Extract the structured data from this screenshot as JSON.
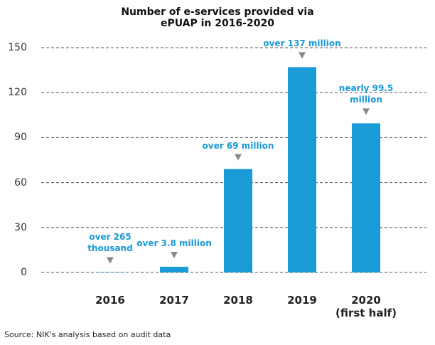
{
  "chart_data": {
    "type": "bar",
    "title": "Number of e-services provided via ePUAP in 2016-2020",
    "categories": [
      "2016",
      "2017",
      "2018",
      "2019",
      "2020\n(first half)"
    ],
    "values": [
      0.265,
      3.8,
      69,
      137,
      99.5
    ],
    "value_labels": [
      "over 265\nthousand",
      "over 3.8 million",
      "over 69 million",
      "over 137 million",
      "nearly 99.5 million"
    ],
    "color": "#1a9ad6",
    "ylim": [
      0,
      150
    ],
    "yticks": [
      0,
      30,
      60,
      90,
      120,
      150
    ],
    "grid": true,
    "source": "Source: NIK's analysis based on audit data"
  }
}
